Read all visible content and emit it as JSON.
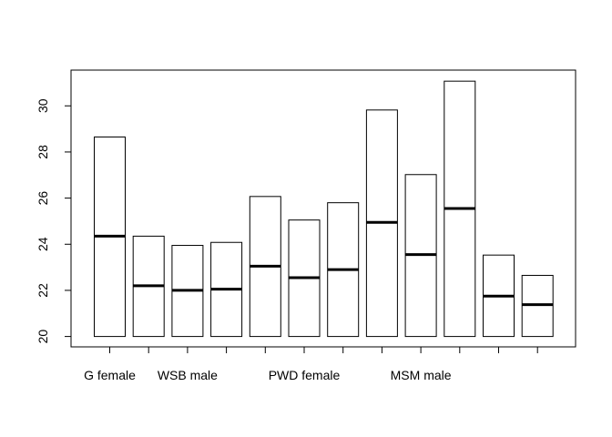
{
  "chart_data": {
    "type": "bar",
    "categories": [
      "G female",
      "",
      "WSB male",
      "",
      "",
      "PWD female",
      "",
      "",
      "MSM male",
      "",
      "",
      ""
    ],
    "tick_labels_shown": [
      "G female",
      "WSB male",
      "PWD female",
      "MSM male"
    ],
    "series": [
      {
        "values": [
          28.65,
          24.35,
          23.95,
          24.08,
          26.07,
          25.05,
          25.8,
          29.82,
          27.02,
          31.07,
          23.53,
          22.65
        ]
      },
      {
        "values": [
          24.35,
          22.2,
          22.0,
          22.05,
          23.05,
          22.55,
          22.9,
          24.95,
          23.55,
          25.55,
          21.75,
          21.38
        ]
      }
    ],
    "yticks": [
      20,
      22,
      24,
      26,
      28,
      30
    ],
    "ylim": [
      19.55,
      31.55
    ],
    "title": "",
    "xlabel": "",
    "ylabel": "",
    "colors": {
      "bar_fill": "#ffffff",
      "bar_stroke": "#000000",
      "median": "#000000"
    }
  }
}
